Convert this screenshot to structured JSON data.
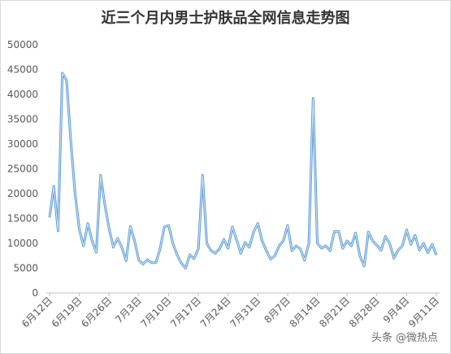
{
  "watermark": "头条 @微热点",
  "chart_data": {
    "type": "line",
    "title": "近三个月内男士护肤品全网信息走势图",
    "xlabel": "",
    "ylabel": "",
    "ylim": [
      0,
      50000
    ],
    "yticks": [
      0,
      5000,
      10000,
      15000,
      20000,
      25000,
      30000,
      35000,
      40000,
      45000,
      50000
    ],
    "grid": false,
    "legend": "none",
    "x_tick_labels": [
      "6月12日",
      "6月19日",
      "6月26日",
      "7月3日",
      "7月10日",
      "7月17日",
      "7月24日",
      "7月31日",
      "8月7日",
      "8月14日",
      "8月21日",
      "8月28日",
      "9月4日",
      "9月11日"
    ],
    "line_color": "#5b9bd5",
    "series": [
      {
        "values": [
          15200,
          21500,
          12500,
          44300,
          42800,
          30500,
          20000,
          12800,
          9500,
          14000,
          10500,
          8200,
          23700,
          17800,
          13000,
          9200,
          11000,
          9200,
          6500,
          13400,
          10500,
          6600,
          5800,
          6700,
          6100,
          6100,
          8900,
          13300,
          13600,
          10000,
          7700,
          6000,
          5000,
          7700,
          6900,
          8900,
          23700,
          10000,
          8500,
          8000,
          8900,
          10800,
          9000,
          13300,
          10700,
          8000,
          10200,
          9200,
          12300,
          14000,
          10500,
          8500,
          6800,
          7500,
          9500,
          10500,
          13600,
          8500,
          9500,
          8900,
          6600,
          10000,
          39200,
          10000,
          9000,
          9500,
          8500,
          12400,
          12400,
          9000,
          10500,
          9500,
          12100,
          7500,
          5400,
          12300,
          10500,
          9600,
          8600,
          11400,
          10000,
          7000,
          8600,
          9500,
          12700,
          9800,
          11600,
          8600,
          10000,
          8100,
          9800,
          7600
        ]
      }
    ]
  }
}
